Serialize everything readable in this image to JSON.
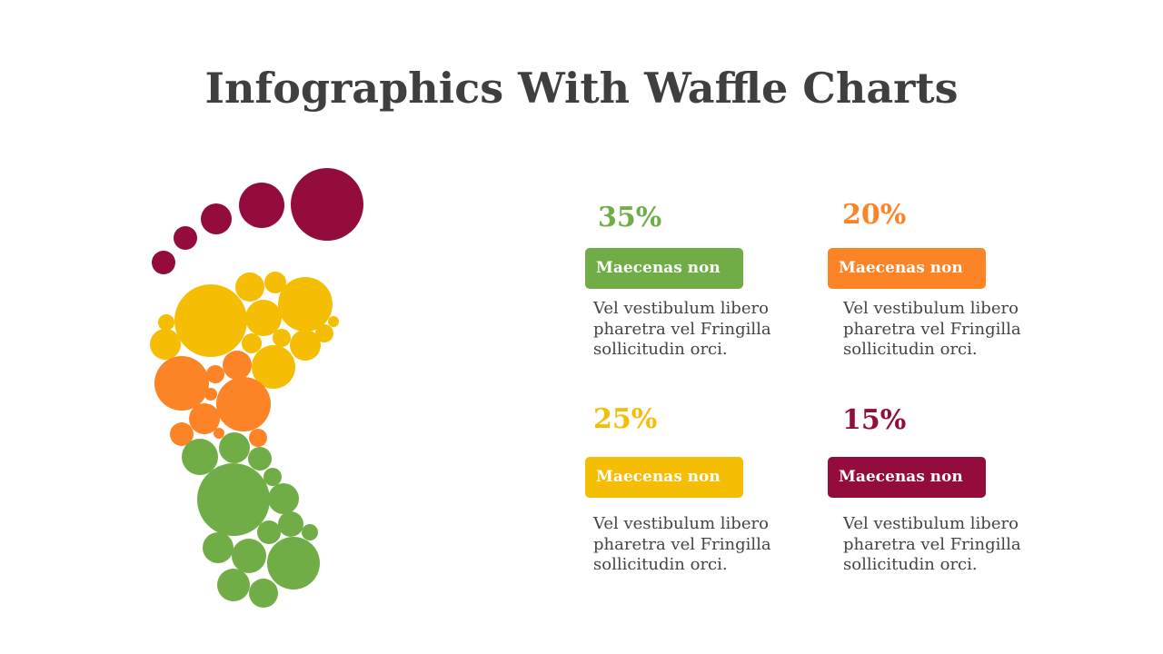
{
  "title": "Infographics With Waffle Charts",
  "colors": {
    "green": "#70ad47",
    "orange": "#fd8426",
    "yellow": "#f6bd05",
    "maroon": "#940b3d",
    "title_text": "#3f3f3f",
    "body_text": "#444444"
  },
  "items": [
    {
      "percent": "35%",
      "label": "Maecenas non",
      "description": "Vel vestibulum libero pharetra vel Fringilla sollicitudin orci.",
      "color": "#70ad47"
    },
    {
      "percent": "20%",
      "label": "Maecenas non",
      "description": "Vel vestibulum libero pharetra vel Fringilla sollicitudin orci.",
      "color": "#fd8426"
    },
    {
      "percent": "25%",
      "label": "Maecenas non",
      "description": "Vel vestibulum libero pharetra vel Fringilla sollicitudin orci.",
      "color": "#f6bd05"
    },
    {
      "percent": "15%",
      "label": "Maecenas non",
      "description": "Vel vestibulum libero pharetra vel Fringilla sollicitudin orci.",
      "color": "#940b3d"
    }
  ]
}
